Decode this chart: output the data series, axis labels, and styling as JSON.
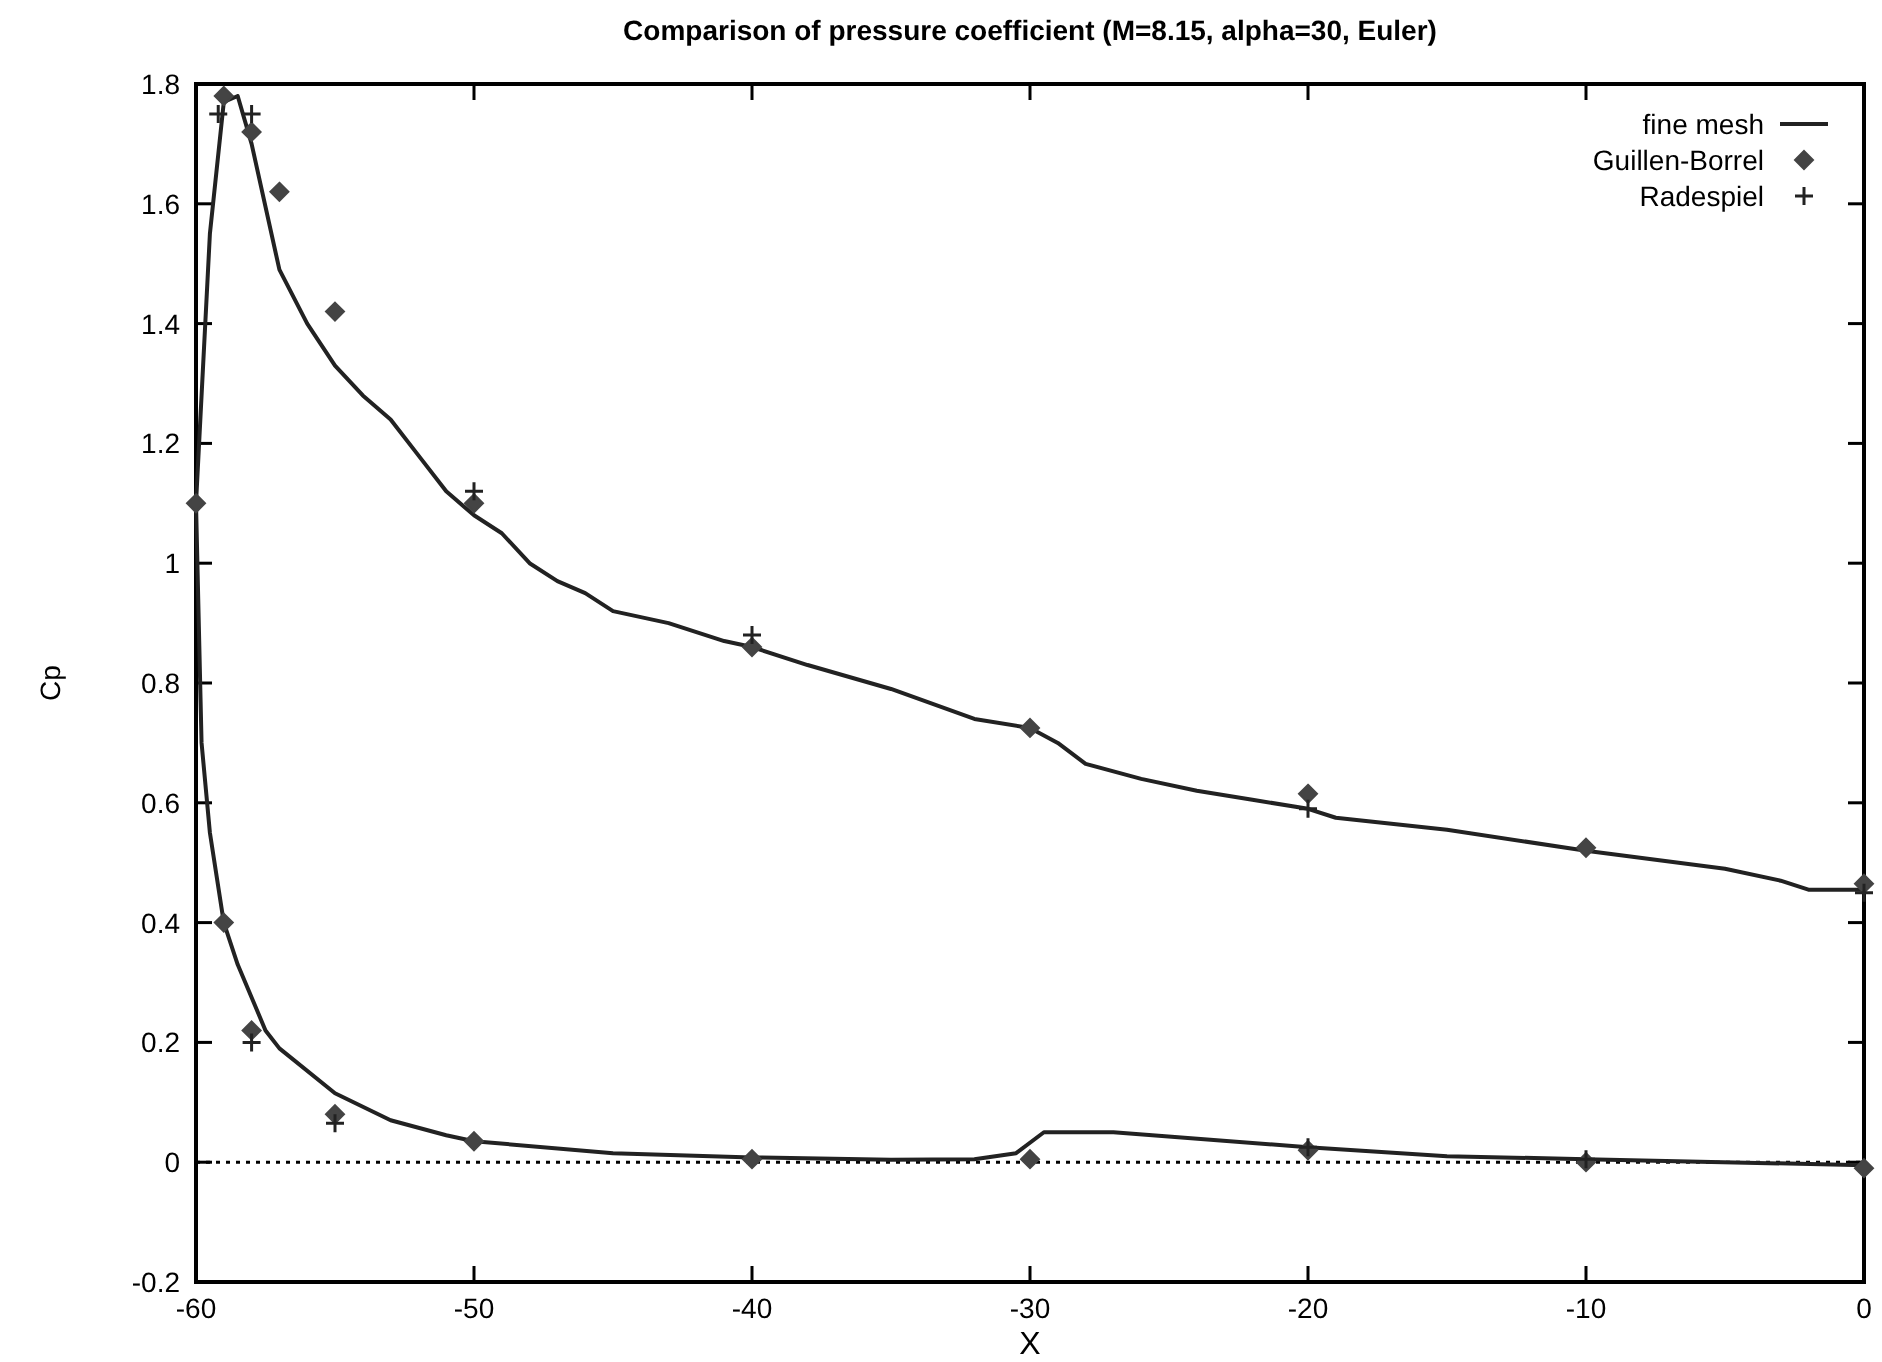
{
  "chart_data": {
    "type": "line",
    "title": "Comparison of pressure coefficient (M=8.15, alpha=30, Euler)",
    "xlabel": "X",
    "ylabel": "Cp",
    "xlim": [
      -60,
      0
    ],
    "ylim": [
      -0.2,
      1.8
    ],
    "xticks": [
      -60,
      -50,
      -40,
      -30,
      -20,
      -10,
      0
    ],
    "yticks": [
      -0.2,
      0,
      0.2,
      0.4,
      0.6,
      0.8,
      1,
      1.2,
      1.4,
      1.6,
      1.8
    ],
    "grid": false,
    "legend": "top right",
    "ref_lines": [
      {
        "axis": "y",
        "value": 0,
        "line_style": "dotted",
        "color": "#000000"
      }
    ],
    "series": [
      {
        "name": "fine mesh",
        "color": "#222222",
        "line_style": "solid",
        "marker": "none",
        "x": [
          0,
          -2,
          -3,
          -5,
          -10,
          -15,
          -19,
          -20,
          -22,
          -24,
          -26,
          -28,
          -29,
          -30,
          -32,
          -35,
          -38,
          -40,
          -41,
          -43,
          -45,
          -46,
          -47,
          -48,
          -49,
          -50,
          -51,
          -52,
          -53,
          -54,
          -55,
          -56,
          -57,
          -58,
          -58.5,
          -59,
          -59.5,
          -60,
          -59.8,
          -59.5,
          -59,
          -58.5,
          -57.5,
          -57,
          -55,
          -53,
          -51,
          -50,
          -45,
          -40,
          -35,
          -32,
          -30.5,
          -29.5,
          -27,
          -20,
          -15,
          -10,
          0
        ],
        "values": [
          0.455,
          0.455,
          0.47,
          0.49,
          0.52,
          0.555,
          0.575,
          0.59,
          0.605,
          0.62,
          0.64,
          0.665,
          0.7,
          0.725,
          0.74,
          0.79,
          0.83,
          0.86,
          0.87,
          0.9,
          0.92,
          0.95,
          0.97,
          1.0,
          1.05,
          1.08,
          1.12,
          1.18,
          1.24,
          1.28,
          1.33,
          1.4,
          1.49,
          1.7,
          1.78,
          1.77,
          1.55,
          1.1,
          0.7,
          0.55,
          0.4,
          0.33,
          0.22,
          0.19,
          0.115,
          0.07,
          0.045,
          0.035,
          0.015,
          0.008,
          0.004,
          0.005,
          0.015,
          0.05,
          0.05,
          0.025,
          0.01,
          0.005,
          -0.005
        ]
      },
      {
        "name": "Guillen-Borrel",
        "type": "scatter",
        "color": "#444444",
        "marker": "diamond",
        "x": [
          -60,
          -59,
          -58,
          -57,
          -55,
          -50,
          -40,
          -30,
          -20,
          -10,
          0,
          -59,
          -58,
          -55,
          -50,
          -40,
          -30,
          -20,
          -10,
          0
        ],
        "values": [
          1.1,
          1.78,
          1.72,
          1.62,
          1.42,
          1.1,
          0.86,
          0.725,
          0.615,
          0.525,
          0.465,
          0.4,
          0.22,
          0.08,
          0.035,
          0.005,
          0.005,
          0.02,
          0.0,
          -0.01
        ]
      },
      {
        "name": "Radespiel",
        "type": "scatter",
        "color": "#222222",
        "marker": "cross",
        "x": [
          -59.2,
          -58,
          -50,
          -40,
          -20,
          0,
          -58,
          -55,
          -20,
          -10
        ],
        "values": [
          1.75,
          1.75,
          1.12,
          0.88,
          0.59,
          0.45,
          0.2,
          0.065,
          0.025,
          0.005
        ]
      }
    ]
  }
}
